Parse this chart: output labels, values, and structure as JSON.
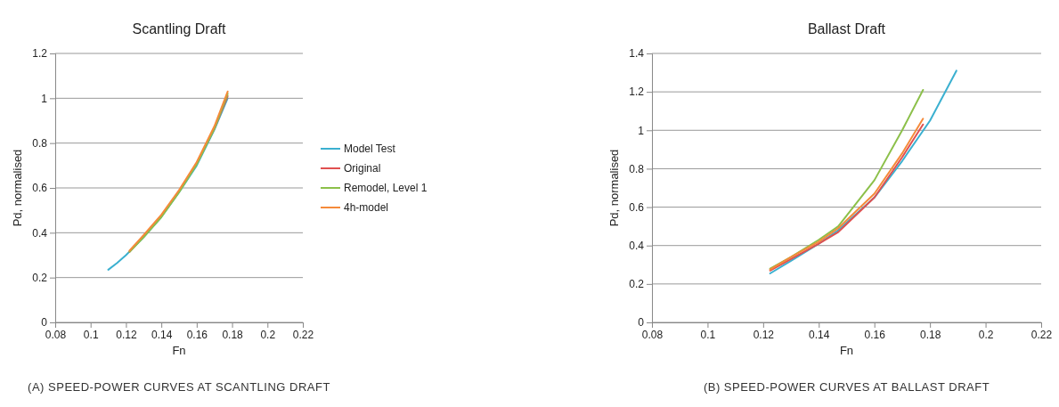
{
  "chart_data": [
    {
      "type": "line",
      "title": "Scantling Draft",
      "xlabel": "Fn",
      "ylabel": "Pd, normalised",
      "xlim": [
        0.08,
        0.22
      ],
      "xticks": [
        0.08,
        0.1,
        0.12,
        0.14,
        0.16,
        0.18,
        0.2,
        0.22
      ],
      "ylim": [
        0,
        1.2
      ],
      "yticks": [
        0,
        0.2,
        0.4,
        0.6,
        0.8,
        1,
        1.2
      ],
      "grid": "y",
      "legend": "right",
      "annotations": [
        "(A) SPEED-POWER CURVES AT SCANTLING DRAFT"
      ],
      "series": [
        {
          "name": "Model Test",
          "color": "#3bb0d0",
          "x": [
            0.11,
            0.115,
            0.12,
            0.13,
            0.14,
            0.15,
            0.16,
            0.17,
            0.1775
          ],
          "values": [
            0.235,
            0.265,
            0.3,
            0.38,
            0.47,
            0.58,
            0.7,
            0.86,
            1.0
          ]
        },
        {
          "name": "Original",
          "color": "#e05050",
          "x": [
            0.122,
            0.13,
            0.14,
            0.15,
            0.16,
            0.17,
            0.1775
          ],
          "values": [
            0.315,
            0.385,
            0.475,
            0.585,
            0.71,
            0.865,
            1.01
          ]
        },
        {
          "name": "Remodel, Level 1",
          "color": "#8cc04a",
          "x": [
            0.122,
            0.13,
            0.14,
            0.15,
            0.16,
            0.17,
            0.1775
          ],
          "values": [
            0.315,
            0.38,
            0.47,
            0.58,
            0.705,
            0.865,
            1.02
          ]
        },
        {
          "name": "4h-model",
          "color": "#f58a3a",
          "x": [
            0.122,
            0.13,
            0.14,
            0.15,
            0.16,
            0.17,
            0.1775
          ],
          "values": [
            0.32,
            0.39,
            0.48,
            0.59,
            0.715,
            0.875,
            1.03
          ]
        }
      ]
    },
    {
      "type": "line",
      "title": "Ballast Draft",
      "xlabel": "Fn",
      "ylabel": "Pd, normalised",
      "xlim": [
        0.08,
        0.22
      ],
      "xticks": [
        0.08,
        0.1,
        0.12,
        0.14,
        0.16,
        0.18,
        0.2,
        0.22
      ],
      "ylim": [
        0,
        1.4
      ],
      "yticks": [
        0,
        0.2,
        0.4,
        0.6,
        0.8,
        1,
        1.2,
        1.4
      ],
      "grid": "y",
      "annotations": [
        "(B) SPEED-POWER CURVES AT BALLAST DRAFT"
      ],
      "series": [
        {
          "color": "#3bb0d0",
          "x": [
            0.1225,
            0.13,
            0.14,
            0.147,
            0.16,
            0.17,
            0.18,
            0.1895
          ],
          "values": [
            0.255,
            0.32,
            0.41,
            0.48,
            0.65,
            0.84,
            1.05,
            1.31
          ]
        },
        {
          "color": "#e05050",
          "x": [
            0.1225,
            0.13,
            0.14,
            0.147,
            0.16,
            0.17,
            0.1775
          ],
          "values": [
            0.27,
            0.33,
            0.41,
            0.47,
            0.65,
            0.86,
            1.03
          ]
        },
        {
          "color": "#8cc04a",
          "x": [
            0.1225,
            0.13,
            0.14,
            0.147,
            0.16,
            0.17,
            0.1775
          ],
          "values": [
            0.28,
            0.34,
            0.43,
            0.5,
            0.74,
            1.0,
            1.21
          ]
        },
        {
          "color": "#f58a3a",
          "x": [
            0.1225,
            0.13,
            0.14,
            0.147,
            0.16,
            0.17,
            0.1775
          ],
          "values": [
            0.275,
            0.34,
            0.42,
            0.49,
            0.67,
            0.88,
            1.06
          ]
        }
      ]
    }
  ]
}
